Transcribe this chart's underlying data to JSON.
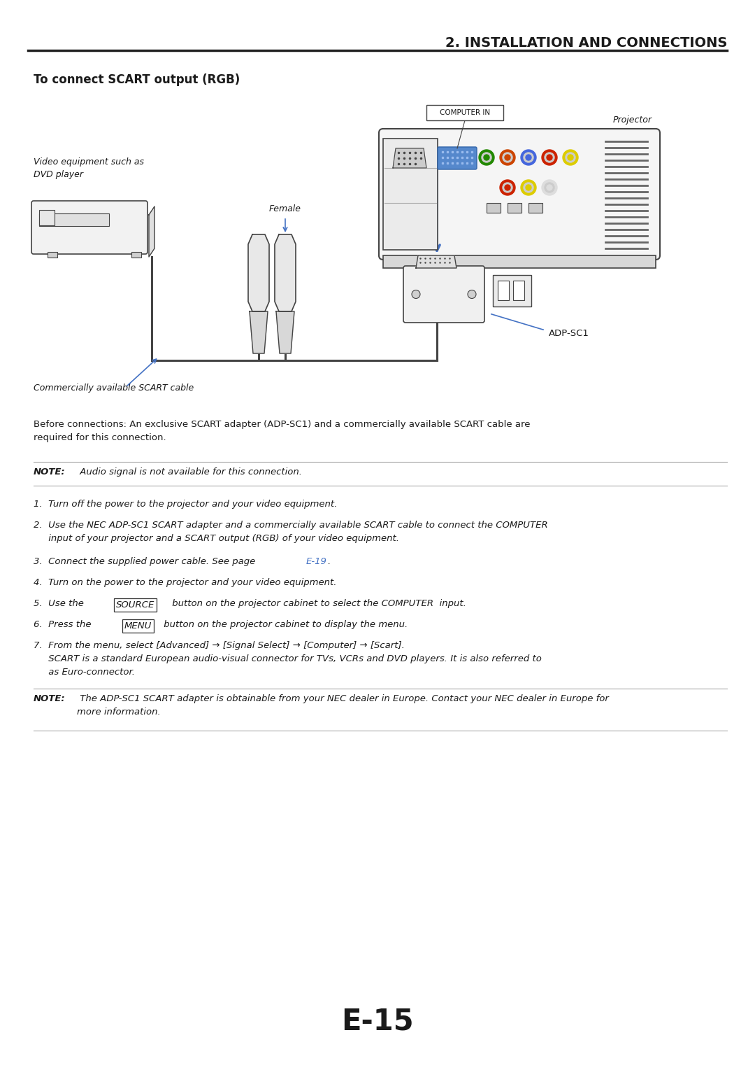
{
  "bg_color": "#ffffff",
  "page_width": 10.8,
  "page_height": 15.29,
  "header_title": "2. INSTALLATION AND CONNECTIONS",
  "section_title": "To connect SCART output (RGB)",
  "before_connections_text": "Before connections: An exclusive SCART adapter (ADP-SC1) and a commercially available SCART cable are\nrequired for this connection.",
  "note1_bold": "NOTE:",
  "note1_text": " Audio signal is not available for this connection.",
  "steps": [
    "1.  Turn off the power to the projector and your video equipment.",
    "2.  Use the NEC ADP-SC1 SCART adapter and a commercially available SCART cable to connect the COMPUTER\n     input of your projector and a SCART output (RGB) of your video equipment.",
    "3.  Connect the supplied power cable. See page ",
    "4.  Turn on the power to the projector and your video equipment.",
    "5.  Use the SOURCE button on the projector cabinet to select the COMPUTER  input.",
    "6.  Press the MENU button on the projector cabinet to display the menu.",
    "7.  From the menu, select [Advanced] → [Signal Select] → [Computer] → [Scart].\n     SCART is a standard European audio-visual connector for TVs, VCRs and DVD players. It is also referred to\n     as Euro-connector."
  ],
  "step3_link": "E-19",
  "note2_bold": "NOTE:",
  "note2_text": " The ADP-SC1 SCART adapter is obtainable from your NEC dealer in Europe. Contact your NEC dealer in Europe for\nmore information.",
  "page_number": "E-15",
  "diagram_labels": {
    "projector": "Projector",
    "computer_in": "COMPUTER IN",
    "video_eq": "Video equipment such as\nDVD player",
    "female": "Female",
    "adp_sc1": "ADP-SC1",
    "scart_cable": "Commercially available SCART cable"
  },
  "link_color": "#4472c4",
  "text_color": "#1a1a1a",
  "line_color": "#333333",
  "diagram_color": "#444444",
  "blue_color": "#4472c4",
  "gray_light": "#d8d8d8",
  "gray_med": "#aaaaaa",
  "gray_dark": "#666666"
}
